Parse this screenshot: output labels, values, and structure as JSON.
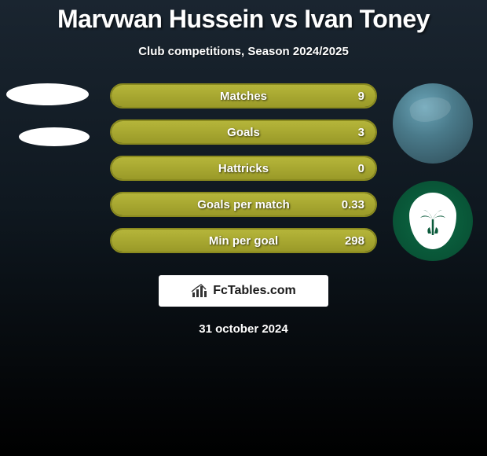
{
  "title": "Marvwan Hussein vs Ivan Toney",
  "subtitle": "Club competitions, Season 2024/2025",
  "date": "31 october 2024",
  "brand": "FcTables.com",
  "stats": {
    "type": "h2h-bars",
    "bar_bg_border": "#8a8a1f",
    "bar_fill_color": "#a8a830",
    "text_color": "#ffffff",
    "rows": [
      {
        "label": "Matches",
        "left": "",
        "right": "9",
        "left_pct": 0,
        "right_pct": 100
      },
      {
        "label": "Goals",
        "left": "",
        "right": "3",
        "left_pct": 0,
        "right_pct": 100
      },
      {
        "label": "Hattricks",
        "left": "",
        "right": "0",
        "left_pct": 0,
        "right_pct": 100
      },
      {
        "label": "Goals per match",
        "left": "",
        "right": "0.33",
        "left_pct": 0,
        "right_pct": 100
      },
      {
        "label": "Min per goal",
        "left": "",
        "right": "298",
        "left_pct": 0,
        "right_pct": 100
      }
    ]
  },
  "colors": {
    "bg_top": "#1a2530",
    "bg_bottom": "#000000",
    "crest_bg": "#0b6b45",
    "crest_palm": "#0a5a3a"
  }
}
